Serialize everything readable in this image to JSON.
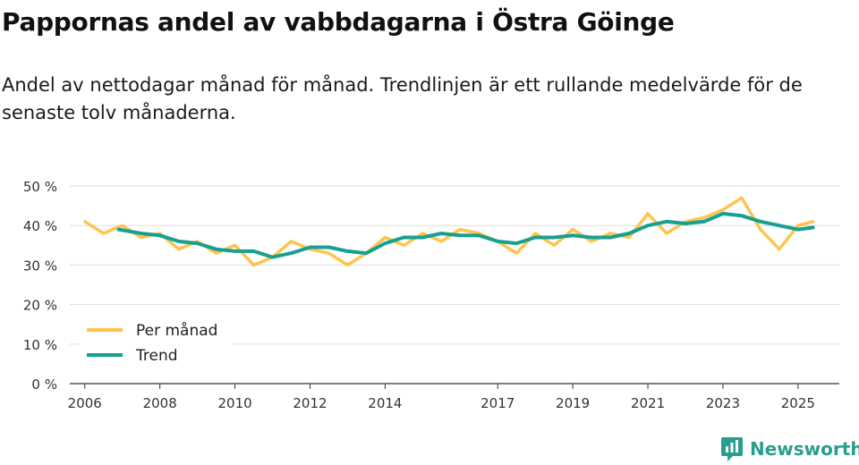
{
  "title": "Pappornas andel av vabbdagarna i Östra Göinge",
  "subtitle": "Andel av nettodagar månad för månad. Trendlinjen är ett rullande medelvärde för de senaste tolv månaderna.",
  "brand": {
    "name": "Newsworthy"
  },
  "colors": {
    "monthly": "#FFC44D",
    "trend": "#17A092",
    "grid": "#dddddd",
    "axis": "#333333",
    "brand": "#2a9d8f"
  },
  "chart_data": {
    "type": "line",
    "title": "Pappornas andel av vabbdagarna i Östra Göinge",
    "xlabel": "",
    "ylabel": "",
    "ylim": [
      0,
      50
    ],
    "y_ticks": [
      0,
      10,
      20,
      30,
      40,
      50
    ],
    "y_tick_labels": [
      "0 %",
      "10 %",
      "20 %",
      "30 %",
      "40 %",
      "50 %"
    ],
    "x_range": [
      2005.6,
      2026.1
    ],
    "x_ticks": [
      2006,
      2008,
      2010,
      2012,
      2014,
      2017,
      2019,
      2021,
      2023,
      2025
    ],
    "x_tick_labels": [
      "2006",
      "2008",
      "2010",
      "2012",
      "2014",
      "2017",
      "2019",
      "2021",
      "2023",
      "2025"
    ],
    "legend": {
      "position": "bottom-left",
      "entries": [
        "Per månad",
        "Trend"
      ]
    },
    "series": [
      {
        "name": "Per månad",
        "x": [
          2006.0,
          2006.5,
          2007.0,
          2007.5,
          2008.0,
          2008.5,
          2009.0,
          2009.5,
          2010.0,
          2010.5,
          2011.0,
          2011.5,
          2012.0,
          2012.5,
          2013.0,
          2013.5,
          2014.0,
          2014.5,
          2015.0,
          2015.5,
          2016.0,
          2016.5,
          2017.0,
          2017.5,
          2018.0,
          2018.5,
          2019.0,
          2019.5,
          2020.0,
          2020.5,
          2021.0,
          2021.5,
          2022.0,
          2022.5,
          2023.0,
          2023.5,
          2024.0,
          2024.5,
          2025.0,
          2025.4
        ],
        "values": [
          41,
          38,
          40,
          37,
          38,
          34,
          36,
          33,
          35,
          30,
          32,
          36,
          34,
          33,
          30,
          33,
          37,
          35,
          38,
          36,
          39,
          38,
          36,
          33,
          38,
          35,
          39,
          36,
          38,
          37,
          43,
          38,
          41,
          42,
          44,
          47,
          39,
          34,
          40,
          41
        ]
      },
      {
        "name": "Trend",
        "x": [
          2006.9,
          2007.5,
          2008.0,
          2008.5,
          2009.0,
          2009.5,
          2010.0,
          2010.5,
          2011.0,
          2011.5,
          2012.0,
          2012.5,
          2013.0,
          2013.5,
          2014.0,
          2014.5,
          2015.0,
          2015.5,
          2016.0,
          2016.5,
          2017.0,
          2017.5,
          2018.0,
          2018.5,
          2019.0,
          2019.5,
          2020.0,
          2020.5,
          2021.0,
          2021.5,
          2022.0,
          2022.5,
          2023.0,
          2023.5,
          2024.0,
          2024.5,
          2025.0,
          2025.4
        ],
        "values": [
          39,
          38,
          37.5,
          36,
          35.5,
          34,
          33.5,
          33.5,
          32,
          33,
          34.5,
          34.5,
          33.5,
          33,
          35.5,
          37,
          37,
          38,
          37.5,
          37.5,
          36,
          35.5,
          37,
          37,
          37.5,
          37,
          37,
          38,
          40,
          41,
          40.5,
          41,
          43,
          42.5,
          41,
          40,
          39,
          39.5
        ]
      }
    ]
  }
}
